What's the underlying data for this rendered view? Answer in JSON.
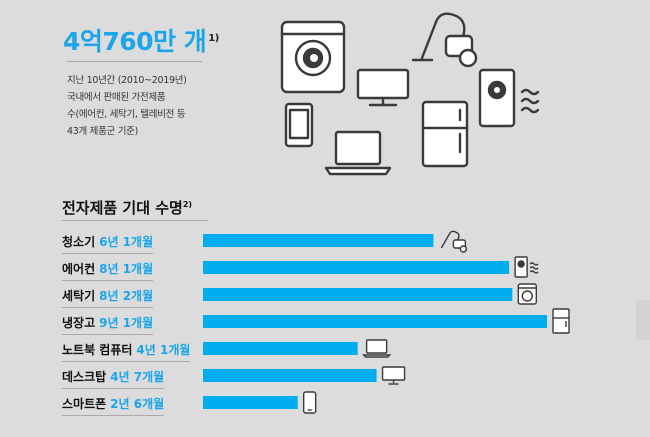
{
  "headline": {
    "value": "4억760만 개",
    "footnote": "1)"
  },
  "description": [
    "지난 10년간 (2010~2019년)",
    "국내에서 판매된 가전제품",
    "수(에어컨, 세탁기, 텔레비전 등",
    "43개 제품군 기준)"
  ],
  "section": {
    "title": "전자제품 기대 수명",
    "footnote": "2)"
  },
  "colors": {
    "accent": "#1aa6e8",
    "bar": "#00aeef",
    "icon_stroke": "#3a3a3a"
  },
  "chart_data": {
    "type": "bar",
    "orientation": "horizontal",
    "categories": [
      "청소기",
      "에어컨",
      "세탁기",
      "냉장고",
      "노트북 컴퓨터",
      "데스크탑",
      "스마트폰"
    ],
    "value_labels": [
      "6년 1개월",
      "8년 1개월",
      "8년 2개월",
      "9년 1개월",
      "4년 1개월",
      "4년 7개월",
      "2년 6개월"
    ],
    "values": [
      6.083,
      8.083,
      8.167,
      9.083,
      4.083,
      4.583,
      2.5
    ],
    "unit": "years",
    "icons": [
      "vacuum-icon",
      "air-conditioner-icon",
      "washing-machine-icon",
      "refrigerator-icon",
      "laptop-icon",
      "monitor-icon",
      "smartphone-icon"
    ]
  }
}
